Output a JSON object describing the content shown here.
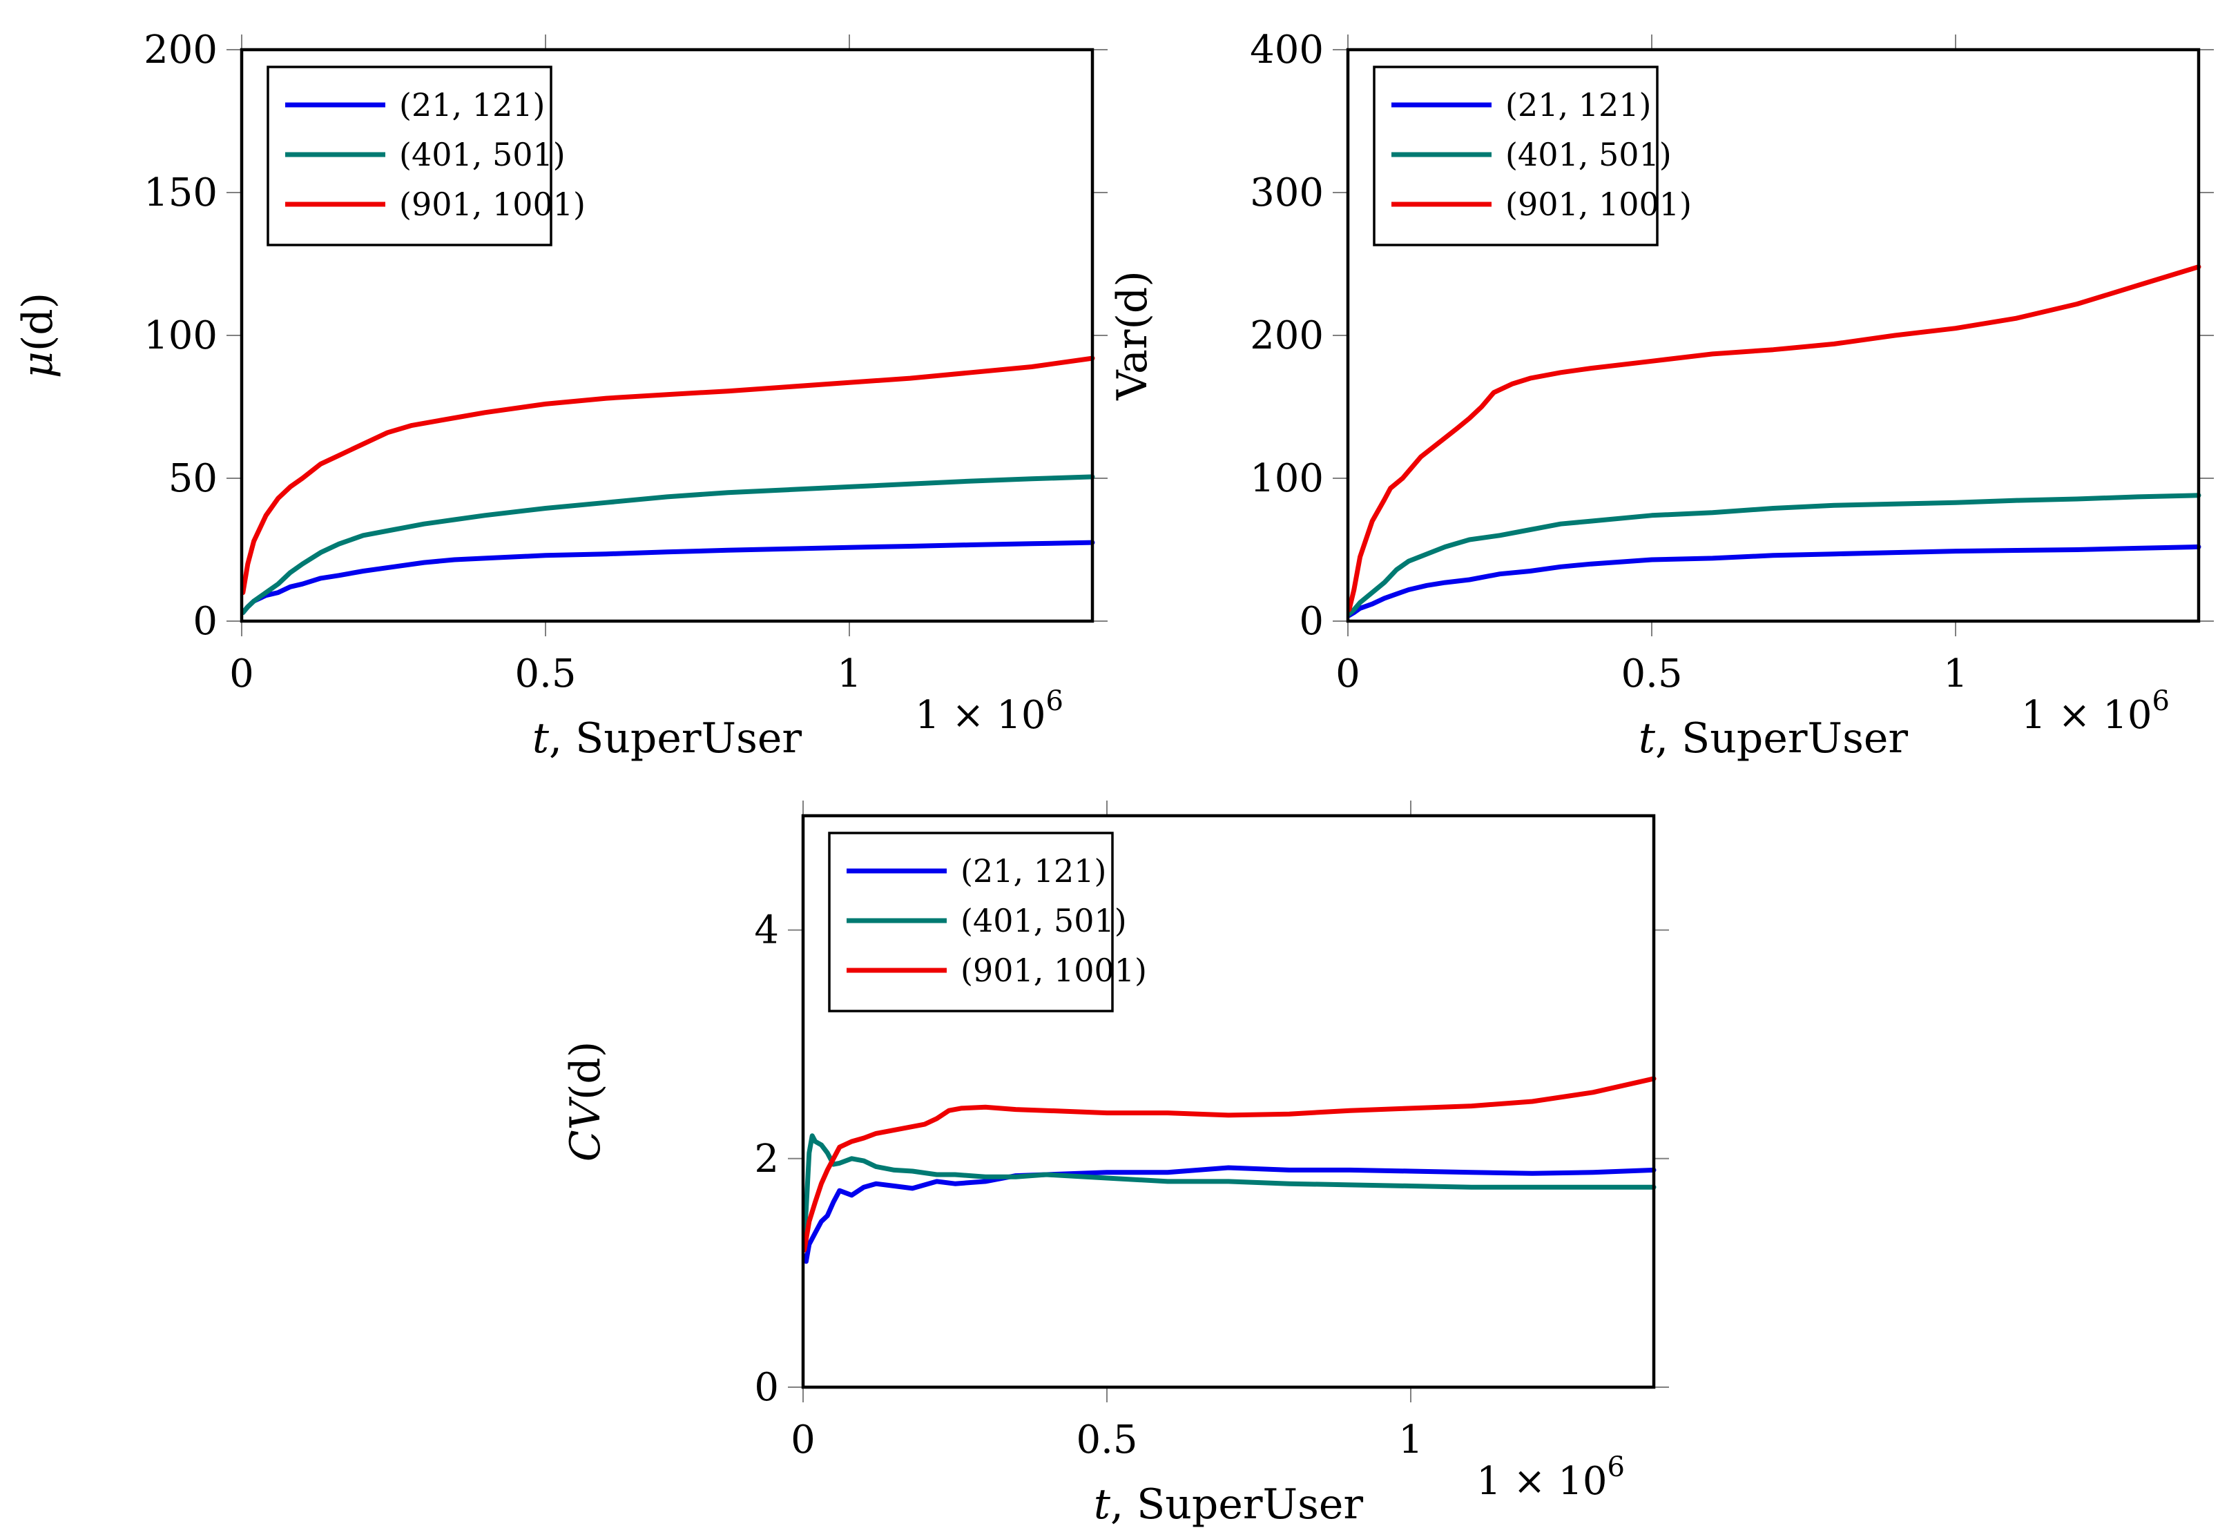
{
  "colors": {
    "series_1": "#0000ee",
    "series_2": "#007a72",
    "series_3": "#ee0000"
  },
  "chart_data": [
    {
      "type": "line",
      "id": "mean",
      "xlabel_var": "t",
      "xlabel_text": ", SuperUser",
      "ylabel_var": "μ",
      "ylabel_rest": "(d)",
      "exponent_label": "1 × 10",
      "exponent_power": "6",
      "xlim": [
        0,
        1.4
      ],
      "ylim": [
        0,
        200
      ],
      "xticks": [
        0,
        0.5,
        1
      ],
      "xtick_labels": [
        "0",
        "0.5",
        "1"
      ],
      "yticks": [
        0,
        50,
        100,
        150,
        200
      ],
      "ytick_labels": [
        "0",
        "50",
        "100",
        "150",
        "200"
      ],
      "legend_position": "top-left",
      "series": [
        {
          "name": "(21, 121)",
          "color": "#0000ee",
          "x": [
            0.002,
            0.01,
            0.02,
            0.04,
            0.06,
            0.08,
            0.1,
            0.13,
            0.16,
            0.2,
            0.25,
            0.3,
            0.35,
            0.4,
            0.5,
            0.6,
            0.7,
            0.8,
            0.9,
            1.0,
            1.1,
            1.2,
            1.3,
            1.4
          ],
          "y": [
            3,
            5,
            7,
            9,
            10,
            12,
            13,
            15,
            16,
            17.5,
            19,
            20.5,
            21.5,
            22,
            23,
            23.5,
            24.2,
            24.8,
            25.3,
            25.8,
            26.2,
            26.7,
            27.1,
            27.5
          ]
        },
        {
          "name": "(401, 501)",
          "color": "#007a72",
          "x": [
            0.002,
            0.01,
            0.02,
            0.04,
            0.06,
            0.08,
            0.1,
            0.13,
            0.16,
            0.2,
            0.25,
            0.3,
            0.35,
            0.4,
            0.5,
            0.6,
            0.7,
            0.8,
            0.9,
            1.0,
            1.1,
            1.2,
            1.3,
            1.4
          ],
          "y": [
            3,
            5,
            7,
            10,
            13,
            17,
            20,
            24,
            27,
            30,
            32,
            34,
            35.5,
            37,
            39.5,
            41.5,
            43.5,
            45,
            46,
            47,
            48,
            49,
            49.8,
            50.5
          ]
        },
        {
          "name": "(901, 1001)",
          "color": "#ee0000",
          "x": [
            0.002,
            0.01,
            0.02,
            0.04,
            0.06,
            0.08,
            0.1,
            0.13,
            0.16,
            0.2,
            0.24,
            0.28,
            0.32,
            0.36,
            0.4,
            0.5,
            0.6,
            0.7,
            0.8,
            0.9,
            1.0,
            1.1,
            1.2,
            1.3,
            1.4
          ],
          "y": [
            10,
            20,
            28,
            37,
            43,
            47,
            50,
            55,
            58,
            62,
            66,
            68.5,
            70,
            71.5,
            73,
            76,
            78,
            79.3,
            80.5,
            82,
            83.5,
            85,
            87,
            89,
            92
          ]
        }
      ]
    },
    {
      "type": "line",
      "id": "variance",
      "xlabel_var": "t",
      "xlabel_text": ", SuperUser",
      "ylabel_var": "",
      "ylabel_rest": "Var(d)",
      "exponent_label": "1 × 10",
      "exponent_power": "6",
      "xlim": [
        0,
        1.4
      ],
      "ylim": [
        0,
        400
      ],
      "xticks": [
        0,
        0.5,
        1
      ],
      "xtick_labels": [
        "0",
        "0.5",
        "1"
      ],
      "yticks": [
        0,
        100,
        200,
        300,
        400
      ],
      "ytick_labels": [
        "0",
        "100",
        "200",
        "300",
        "400"
      ],
      "legend_position": "top-left",
      "series": [
        {
          "name": "(21, 121)",
          "color": "#0000ee",
          "x": [
            0.002,
            0.01,
            0.02,
            0.04,
            0.06,
            0.08,
            0.1,
            0.13,
            0.16,
            0.2,
            0.25,
            0.3,
            0.35,
            0.4,
            0.5,
            0.6,
            0.7,
            0.8,
            0.9,
            1.0,
            1.1,
            1.2,
            1.3,
            1.4
          ],
          "y": [
            4,
            6,
            9,
            12,
            16,
            19,
            22,
            25,
            27,
            29,
            33,
            35,
            38,
            40,
            43,
            44,
            46,
            47,
            48,
            49,
            49.5,
            50,
            51,
            52
          ]
        },
        {
          "name": "(401, 501)",
          "color": "#007a72",
          "x": [
            0.002,
            0.01,
            0.02,
            0.04,
            0.06,
            0.08,
            0.1,
            0.13,
            0.16,
            0.2,
            0.25,
            0.3,
            0.35,
            0.4,
            0.5,
            0.6,
            0.7,
            0.8,
            0.9,
            1.0,
            1.1,
            1.2,
            1.3,
            1.4
          ],
          "y": [
            5,
            8,
            13,
            20,
            27,
            36,
            42,
            47,
            52,
            57,
            60,
            64,
            68,
            70,
            74,
            76,
            79,
            81,
            82,
            83,
            84.5,
            85.5,
            87,
            88
          ]
        },
        {
          "name": "(901, 1001)",
          "color": "#ee0000",
          "x": [
            0.002,
            0.01,
            0.02,
            0.04,
            0.06,
            0.07,
            0.09,
            0.12,
            0.15,
            0.18,
            0.2,
            0.22,
            0.24,
            0.27,
            0.3,
            0.35,
            0.4,
            0.5,
            0.6,
            0.7,
            0.8,
            0.9,
            1.0,
            1.1,
            1.2,
            1.3,
            1.4
          ],
          "y": [
            8,
            22,
            45,
            70,
            85,
            93,
            100,
            115,
            125,
            135,
            142,
            150,
            160,
            166,
            170,
            174,
            177,
            182,
            187,
            190,
            194,
            200,
            205,
            212,
            222,
            235,
            248
          ]
        }
      ]
    },
    {
      "type": "line",
      "id": "cv",
      "xlabel_var": "t",
      "xlabel_text": ", SuperUser",
      "ylabel_var": "CV",
      "ylabel_rest": "(d)",
      "exponent_label": "1 × 10",
      "exponent_power": "6",
      "xlim": [
        0,
        1.4
      ],
      "ylim": [
        0,
        5
      ],
      "xticks": [
        0,
        0.5,
        1
      ],
      "xtick_labels": [
        "0",
        "0.5",
        "1"
      ],
      "yticks": [
        0,
        2,
        4
      ],
      "ytick_labels": [
        "0",
        "2",
        "4"
      ],
      "legend_position": "top-left",
      "series": [
        {
          "name": "(21, 121)",
          "color": "#0000ee",
          "x": [
            0.002,
            0.005,
            0.01,
            0.02,
            0.03,
            0.04,
            0.05,
            0.06,
            0.08,
            0.1,
            0.12,
            0.15,
            0.18,
            0.22,
            0.25,
            0.3,
            0.35,
            0.4,
            0.5,
            0.6,
            0.7,
            0.8,
            0.9,
            1.0,
            1.1,
            1.2,
            1.3,
            1.4
          ],
          "y": [
            1.15,
            1.1,
            1.25,
            1.35,
            1.45,
            1.5,
            1.62,
            1.72,
            1.68,
            1.75,
            1.78,
            1.76,
            1.74,
            1.8,
            1.78,
            1.8,
            1.85,
            1.86,
            1.88,
            1.88,
            1.92,
            1.9,
            1.9,
            1.89,
            1.88,
            1.87,
            1.88,
            1.9
          ]
        },
        {
          "name": "(401, 501)",
          "color": "#007a72",
          "x": [
            0.002,
            0.005,
            0.01,
            0.015,
            0.02,
            0.03,
            0.04,
            0.05,
            0.06,
            0.08,
            0.1,
            0.12,
            0.15,
            0.18,
            0.22,
            0.25,
            0.3,
            0.35,
            0.4,
            0.5,
            0.6,
            0.7,
            0.8,
            0.9,
            1.0,
            1.1,
            1.2,
            1.3,
            1.4
          ],
          "y": [
            1.35,
            1.55,
            2.05,
            2.2,
            2.15,
            2.12,
            2.05,
            1.95,
            1.96,
            2.0,
            1.98,
            1.93,
            1.9,
            1.89,
            1.86,
            1.86,
            1.84,
            1.84,
            1.86,
            1.83,
            1.8,
            1.8,
            1.78,
            1.77,
            1.76,
            1.75,
            1.75,
            1.75,
            1.75
          ]
        },
        {
          "name": "(901, 1001)",
          "color": "#ee0000",
          "x": [
            0.002,
            0.01,
            0.02,
            0.03,
            0.04,
            0.05,
            0.06,
            0.08,
            0.1,
            0.12,
            0.15,
            0.18,
            0.2,
            0.22,
            0.24,
            0.26,
            0.3,
            0.35,
            0.4,
            0.5,
            0.6,
            0.7,
            0.8,
            0.9,
            1.0,
            1.1,
            1.2,
            1.3,
            1.4
          ],
          "y": [
            1.2,
            1.45,
            1.62,
            1.78,
            1.9,
            2.0,
            2.1,
            2.15,
            2.18,
            2.22,
            2.25,
            2.28,
            2.3,
            2.35,
            2.42,
            2.44,
            2.45,
            2.43,
            2.42,
            2.4,
            2.4,
            2.38,
            2.39,
            2.42,
            2.44,
            2.46,
            2.5,
            2.58,
            2.7
          ]
        }
      ]
    }
  ]
}
